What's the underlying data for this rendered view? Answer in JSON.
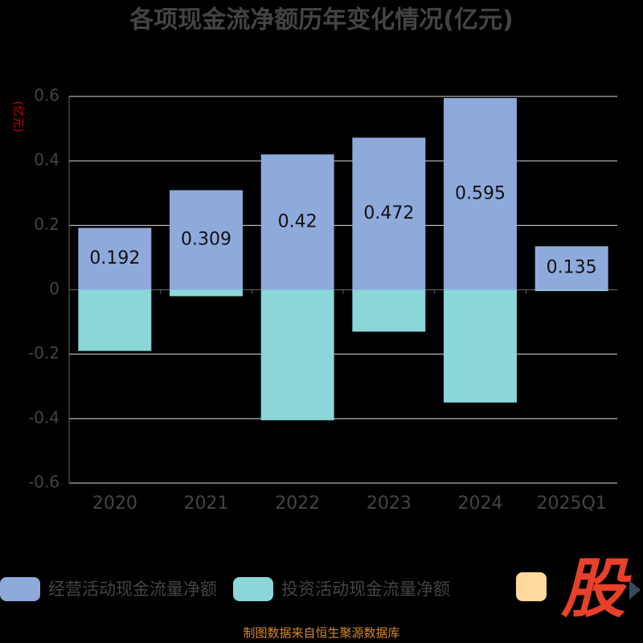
{
  "chart_data": {
    "type": "bar",
    "title": "各项现金流净额历年变化情况(亿元)",
    "y_label": "(亿元)",
    "categories": [
      "2020",
      "2021",
      "2022",
      "2023",
      "2024",
      "2025Q1"
    ],
    "series": [
      {
        "name": "经营活动现金流量净额",
        "color": "#8eaadb",
        "values": [
          0.192,
          0.309,
          0.42,
          0.472,
          0.595,
          0.135
        ],
        "show_labels": true
      },
      {
        "name": "投资活动现金流量净额",
        "color": "#8ad6d8",
        "values": [
          -0.19,
          -0.02,
          -0.405,
          -0.13,
          -0.35,
          -0.004
        ],
        "show_labels": false
      }
    ],
    "ylim": [
      -0.6,
      0.6
    ],
    "yticks": [
      -0.6,
      -0.4,
      -0.2,
      0,
      0.2,
      0.4,
      0.6
    ],
    "grid": true,
    "source": "制图数据来自恒生聚源数据库",
    "watermark": "股"
  }
}
